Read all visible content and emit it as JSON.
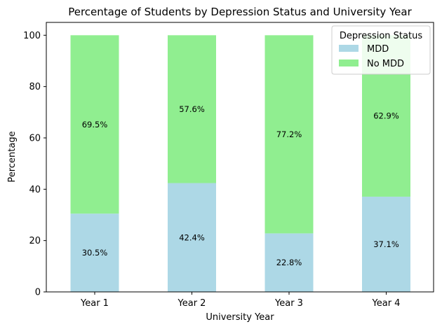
{
  "chart_data": {
    "type": "bar",
    "stacked": true,
    "title": "Percentage of Students by Depression Status and University Year",
    "xlabel": "University Year",
    "ylabel": "Percentage",
    "categories": [
      "Year 1",
      "Year 2",
      "Year 3",
      "Year 4"
    ],
    "series": [
      {
        "name": "MDD",
        "values": [
          30.5,
          42.4,
          22.8,
          37.1
        ],
        "color": "#add8e6",
        "labels": [
          "30.5%",
          "42.4%",
          "22.8%",
          "37.1%"
        ]
      },
      {
        "name": "No MDD",
        "values": [
          69.5,
          57.6,
          77.2,
          62.9
        ],
        "color": "#90ee90",
        "labels": [
          "69.5%",
          "57.6%",
          "77.2%",
          "62.9%"
        ]
      }
    ],
    "ylim": [
      0,
      105
    ],
    "yticks": [
      0,
      20,
      40,
      60,
      80,
      100
    ],
    "grid": false,
    "legend": {
      "title": "Depression Status",
      "placement": "top-right"
    }
  }
}
